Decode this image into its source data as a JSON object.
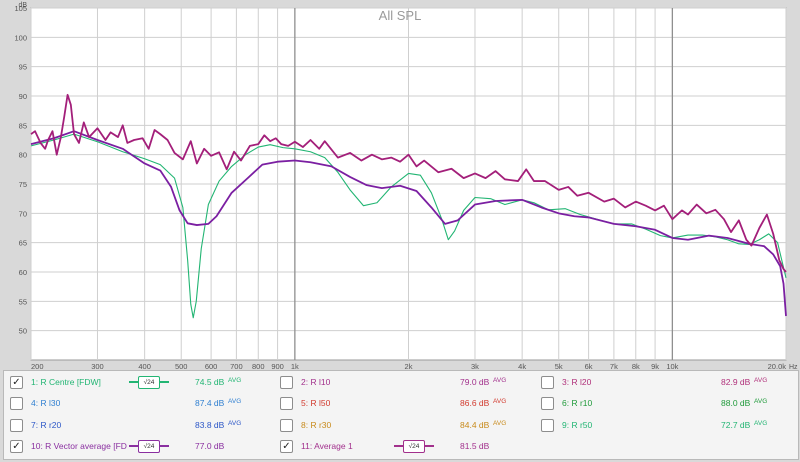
{
  "chart_data": {
    "type": "line",
    "title": "All SPL",
    "ylabel": "dB",
    "xlabel": "Hz",
    "xscale": "log",
    "xlim": [
      200,
      20000
    ],
    "ylim": [
      45,
      105
    ],
    "grid": true,
    "y_ticks": [
      "50",
      "55",
      "60",
      "65",
      "70",
      "75",
      "80",
      "85",
      "90",
      "95",
      "100",
      "105"
    ],
    "x_ticks": [
      {
        "v": 200,
        "label": "200"
      },
      {
        "v": 300,
        "label": "300"
      },
      {
        "v": 400,
        "label": "400"
      },
      {
        "v": 500,
        "label": "500"
      },
      {
        "v": 600,
        "label": "600"
      },
      {
        "v": 700,
        "label": "700"
      },
      {
        "v": 800,
        "label": "800"
      },
      {
        "v": 900,
        "label": "900"
      },
      {
        "v": 1000,
        "label": "1k"
      },
      {
        "v": 2000,
        "label": "2k"
      },
      {
        "v": 3000,
        "label": "3k"
      },
      {
        "v": 4000,
        "label": "4k"
      },
      {
        "v": 5000,
        "label": "5k"
      },
      {
        "v": 6000,
        "label": "6k"
      },
      {
        "v": 7000,
        "label": "7k"
      },
      {
        "v": 8000,
        "label": "8k"
      },
      {
        "v": 9000,
        "label": "9k"
      },
      {
        "v": 10000,
        "label": "10k"
      },
      {
        "v": 20000,
        "label": "20.0k"
      }
    ],
    "series": [
      {
        "name": "R Centre [FDW]",
        "color": "#22b573",
        "width": 1.1,
        "points": [
          [
            200,
            81.5
          ],
          [
            230,
            82.5
          ],
          [
            260,
            83.5
          ],
          [
            300,
            82.2
          ],
          [
            350,
            80.5
          ],
          [
            400,
            79.3
          ],
          [
            440,
            78.3
          ],
          [
            480,
            76
          ],
          [
            505,
            71
          ],
          [
            520,
            62
          ],
          [
            530,
            54.5
          ],
          [
            538,
            52.2
          ],
          [
            548,
            55
          ],
          [
            565,
            64
          ],
          [
            590,
            71.5
          ],
          [
            630,
            75.5
          ],
          [
            680,
            78
          ],
          [
            740,
            80
          ],
          [
            800,
            81.3
          ],
          [
            860,
            81.7
          ],
          [
            930,
            81.2
          ],
          [
            1000,
            81
          ],
          [
            1100,
            80.5
          ],
          [
            1200,
            79.5
          ],
          [
            1300,
            77
          ],
          [
            1400,
            74
          ],
          [
            1520,
            71.3
          ],
          [
            1650,
            71.8
          ],
          [
            1800,
            74.5
          ],
          [
            2000,
            76.8
          ],
          [
            2150,
            76.5
          ],
          [
            2300,
            73.5
          ],
          [
            2450,
            69
          ],
          [
            2550,
            65.5
          ],
          [
            2650,
            67
          ],
          [
            2800,
            70.5
          ],
          [
            3000,
            72.7
          ],
          [
            3300,
            72.5
          ],
          [
            3600,
            71.5
          ],
          [
            4000,
            72.3
          ],
          [
            4300,
            71.8
          ],
          [
            4700,
            70.6
          ],
          [
            5200,
            70.8
          ],
          [
            5700,
            69.8
          ],
          [
            6300,
            69
          ],
          [
            7000,
            68.2
          ],
          [
            7800,
            68.2
          ],
          [
            8500,
            67.3
          ],
          [
            9300,
            66.2
          ],
          [
            10000,
            65.8
          ],
          [
            11000,
            66.3
          ],
          [
            12000,
            66.3
          ],
          [
            13000,
            66
          ],
          [
            14000,
            65.5
          ],
          [
            15000,
            64.8
          ],
          [
            16000,
            64.7
          ],
          [
            17000,
            65.5
          ],
          [
            18000,
            66.5
          ],
          [
            19000,
            65
          ],
          [
            20000,
            59
          ]
        ]
      },
      {
        "name": "R Vector average [FDW]",
        "color": "#7b1fa2",
        "width": 1.8,
        "points": [
          [
            200,
            81.8
          ],
          [
            230,
            82.8
          ],
          [
            260,
            84
          ],
          [
            300,
            82.5
          ],
          [
            350,
            81
          ],
          [
            400,
            78.5
          ],
          [
            440,
            77.3
          ],
          [
            470,
            74.5
          ],
          [
            495,
            70.5
          ],
          [
            520,
            68.3
          ],
          [
            550,
            68
          ],
          [
            590,
            68.2
          ],
          [
            620,
            69.5
          ],
          [
            680,
            73.5
          ],
          [
            750,
            76
          ],
          [
            820,
            78.3
          ],
          [
            900,
            78.8
          ],
          [
            1000,
            79
          ],
          [
            1100,
            78.7
          ],
          [
            1250,
            78
          ],
          [
            1400,
            76.2
          ],
          [
            1550,
            74.8
          ],
          [
            1700,
            74.3
          ],
          [
            1900,
            74.7
          ],
          [
            2100,
            73.8
          ],
          [
            2300,
            71
          ],
          [
            2500,
            68.2
          ],
          [
            2700,
            68.8
          ],
          [
            3000,
            71.5
          ],
          [
            3400,
            72.1
          ],
          [
            4000,
            72.3
          ],
          [
            4500,
            71
          ],
          [
            5000,
            70
          ],
          [
            5500,
            69.5
          ],
          [
            6000,
            69.3
          ],
          [
            7000,
            68.2
          ],
          [
            8000,
            67.8
          ],
          [
            9000,
            67.2
          ],
          [
            10000,
            65.8
          ],
          [
            11000,
            65.5
          ],
          [
            12500,
            66.2
          ],
          [
            14000,
            65.8
          ],
          [
            16000,
            64.8
          ],
          [
            17500,
            64.4
          ],
          [
            18500,
            63
          ],
          [
            19300,
            61
          ],
          [
            19700,
            58
          ],
          [
            20000,
            52.5
          ]
        ]
      },
      {
        "name": "Average 1",
        "color": "#a31f7a",
        "width": 1.8,
        "points": [
          [
            200,
            83.5
          ],
          [
            205,
            84
          ],
          [
            212,
            82
          ],
          [
            218,
            81
          ],
          [
            222,
            82.5
          ],
          [
            228,
            84
          ],
          [
            234,
            80
          ],
          [
            240,
            83
          ],
          [
            245,
            86.5
          ],
          [
            250,
            90.2
          ],
          [
            255,
            88.5
          ],
          [
            260,
            83.5
          ],
          [
            268,
            82
          ],
          [
            276,
            85.5
          ],
          [
            285,
            83
          ],
          [
            300,
            84.5
          ],
          [
            315,
            82.5
          ],
          [
            325,
            83.8
          ],
          [
            340,
            83
          ],
          [
            350,
            85
          ],
          [
            360,
            82
          ],
          [
            375,
            82.5
          ],
          [
            395,
            82.8
          ],
          [
            410,
            81
          ],
          [
            425,
            84.2
          ],
          [
            440,
            83.5
          ],
          [
            460,
            82.5
          ],
          [
            480,
            80.3
          ],
          [
            505,
            79.2
          ],
          [
            530,
            82.3
          ],
          [
            550,
            78.5
          ],
          [
            575,
            81
          ],
          [
            600,
            79.8
          ],
          [
            630,
            80.4
          ],
          [
            660,
            77.5
          ],
          [
            690,
            80.5
          ],
          [
            720,
            79
          ],
          [
            760,
            81.5
          ],
          [
            800,
            81.8
          ],
          [
            830,
            83.3
          ],
          [
            860,
            82.3
          ],
          [
            890,
            82.8
          ],
          [
            920,
            81.8
          ],
          [
            960,
            81.5
          ],
          [
            1000,
            82.2
          ],
          [
            1050,
            81.3
          ],
          [
            1100,
            82.5
          ],
          [
            1160,
            81
          ],
          [
            1200,
            82.3
          ],
          [
            1300,
            79.5
          ],
          [
            1400,
            80.3
          ],
          [
            1500,
            79
          ],
          [
            1600,
            80
          ],
          [
            1700,
            79.2
          ],
          [
            1800,
            79.5
          ],
          [
            1900,
            78.8
          ],
          [
            2000,
            80
          ],
          [
            2100,
            78
          ],
          [
            2200,
            79
          ],
          [
            2400,
            77
          ],
          [
            2600,
            77.6
          ],
          [
            2800,
            76
          ],
          [
            3000,
            76.8
          ],
          [
            3200,
            76
          ],
          [
            3400,
            77.2
          ],
          [
            3600,
            75.8
          ],
          [
            3900,
            75.5
          ],
          [
            4100,
            77.5
          ],
          [
            4300,
            75.5
          ],
          [
            4600,
            75.5
          ],
          [
            5000,
            74
          ],
          [
            5300,
            74.5
          ],
          [
            5600,
            73
          ],
          [
            6000,
            73.5
          ],
          [
            6600,
            72
          ],
          [
            7000,
            72.5
          ],
          [
            7500,
            71
          ],
          [
            8000,
            72
          ],
          [
            8500,
            71.3
          ],
          [
            9000,
            70.5
          ],
          [
            9500,
            71.3
          ],
          [
            10000,
            69
          ],
          [
            10600,
            70.5
          ],
          [
            11000,
            69.8
          ],
          [
            11600,
            71.5
          ],
          [
            12300,
            70
          ],
          [
            13000,
            70.6
          ],
          [
            13700,
            69
          ],
          [
            14300,
            66.8
          ],
          [
            15000,
            68.8
          ],
          [
            15700,
            65.5
          ],
          [
            16200,
            64.5
          ],
          [
            17000,
            67.5
          ],
          [
            17800,
            69.8
          ],
          [
            18500,
            66.5
          ],
          [
            19200,
            62
          ],
          [
            19700,
            60.5
          ],
          [
            20000,
            60
          ]
        ]
      }
    ]
  },
  "legend": {
    "col1": [
      {
        "checked": true,
        "label": "1: R Centre [FDW]",
        "color": "#22b573",
        "badge": "√24",
        "value": "74.5 dB",
        "avg": "AVG",
        "value_color": "#22b573"
      },
      {
        "checked": false,
        "label": "4: R l30",
        "color": "#2f7fd1",
        "value": "87.4 dB",
        "avg": "AVG",
        "value_color": "#2f7fd1"
      },
      {
        "checked": false,
        "label": "7: R r20",
        "color": "#2b56c7",
        "value": "83.8 dB",
        "avg": "AVG",
        "value_color": "#2b56c7"
      },
      {
        "checked": true,
        "label": "10: R Vector average [FD",
        "color": "#8a2fa0",
        "badge": "√24",
        "value": "77.0 dB",
        "avg": "",
        "value_color": "#8a2fa0"
      }
    ],
    "col2": [
      {
        "checked": false,
        "label": "2: R l10",
        "color": "#a2308c",
        "value": "79.0 dB",
        "avg": "AVG",
        "value_color": "#a2308c"
      },
      {
        "checked": false,
        "label": "5: R l50",
        "color": "#d23a2e",
        "value": "86.6 dB",
        "avg": "AVG",
        "value_color": "#d23a2e"
      },
      {
        "checked": false,
        "label": "8: R r30",
        "color": "#c88a1a",
        "value": "84.4 dB",
        "avg": "AVG",
        "value_color": "#c88a1a"
      },
      {
        "checked": true,
        "label": "11: Average 1",
        "color": "#a2308c",
        "badge": "√24",
        "value": "81.5 dB",
        "avg": "",
        "value_color": "#a2308c"
      }
    ],
    "col3": [
      {
        "checked": false,
        "label": "3: R l20",
        "color": "#b0307a",
        "value": "82.9 dB",
        "avg": "AVG",
        "value_color": "#b0307a"
      },
      {
        "checked": false,
        "label": "6: R r10",
        "color": "#1f9a3a",
        "value": "88.0 dB",
        "avg": "AVG",
        "value_color": "#1f9a3a"
      },
      {
        "checked": false,
        "label": "9: R r50",
        "color": "#22b573",
        "value": "72.7 dB",
        "avg": "AVG",
        "value_color": "#22b573"
      }
    ]
  }
}
